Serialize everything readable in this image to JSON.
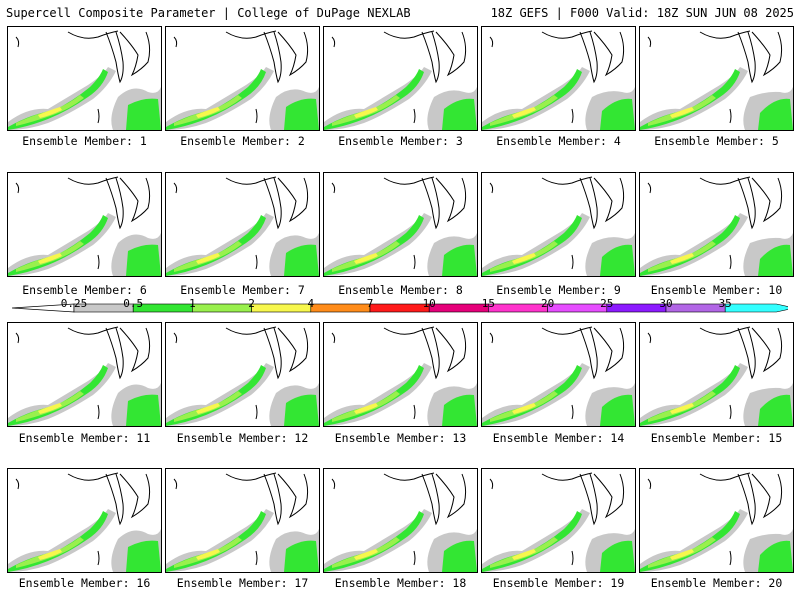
{
  "header": {
    "title": "Supercell Composite Parameter | College of DuPage NEXLAB",
    "run_info": "18Z GEFS | F000 Valid: 18Z SUN JUN 08 2025"
  },
  "members": [
    {
      "label": "Ensemble Member: 1"
    },
    {
      "label": "Ensemble Member: 2"
    },
    {
      "label": "Ensemble Member: 3"
    },
    {
      "label": "Ensemble Member: 4"
    },
    {
      "label": "Ensemble Member: 5"
    },
    {
      "label": "Ensemble Member: 6"
    },
    {
      "label": "Ensemble Member: 7"
    },
    {
      "label": "Ensemble Member: 8"
    },
    {
      "label": "Ensemble Member: 9"
    },
    {
      "label": "Ensemble Member: 10"
    },
    {
      "label": "Ensemble Member: 11"
    },
    {
      "label": "Ensemble Member: 12"
    },
    {
      "label": "Ensemble Member: 13"
    },
    {
      "label": "Ensemble Member: 14"
    },
    {
      "label": "Ensemble Member: 15"
    },
    {
      "label": "Ensemble Member: 16"
    },
    {
      "label": "Ensemble Member: 17"
    },
    {
      "label": "Ensemble Member: 18"
    },
    {
      "label": "Ensemble Member: 19"
    },
    {
      "label": "Ensemble Member: 20"
    }
  ],
  "colorbar": {
    "ticks": [
      "0.25",
      "0.5",
      "1",
      "2",
      "4",
      "7",
      "10",
      "15",
      "20",
      "25",
      "30",
      "35"
    ],
    "colors": [
      "#c8c8c8",
      "#33e633",
      "#99f04d",
      "#f7f74d",
      "#ff8c1a",
      "#ff1a1a",
      "#e6007a",
      "#ff33cc",
      "#e64dff",
      "#8c1aff",
      "#b266e6",
      "#33ffff"
    ]
  }
}
